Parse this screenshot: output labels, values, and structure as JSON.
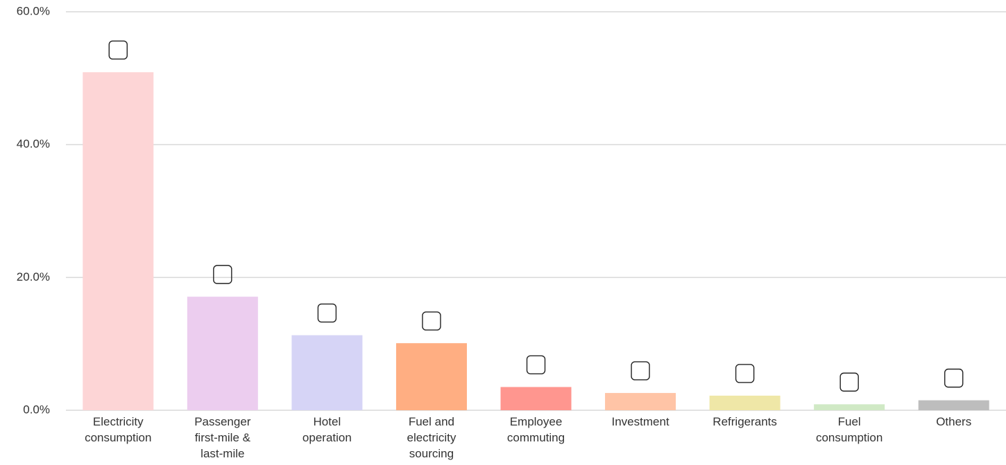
{
  "chart_data": {
    "type": "bar",
    "categories": [
      "Electricity\nconsumption",
      "Passenger\nfirst-mile &\nlast-mile",
      "Hotel\noperation",
      "Fuel and\nelectricity\nsourcing",
      "Employee\ncommuting",
      "Investment",
      "Refrigerants",
      "Fuel\nconsumption",
      "Others"
    ],
    "values": [
      50.9,
      17.1,
      11.3,
      10.1,
      3.5,
      2.6,
      2.2,
      0.9,
      1.5
    ],
    "colors": [
      "#fdd5d6",
      "#eccdef",
      "#d6d4f6",
      "#ffae82",
      "#ff968f",
      "#ffc4a6",
      "#efe7a7",
      "#d0e9c5",
      "#bdbdbd"
    ],
    "ylim": [
      0,
      60
    ],
    "yticks": [
      {
        "value": 0,
        "label": "0.0%"
      },
      {
        "value": 20,
        "label": "20.0%"
      },
      {
        "value": 40,
        "label": "40.0%"
      },
      {
        "value": 60,
        "label": "60.0%"
      }
    ],
    "grid": true
  }
}
